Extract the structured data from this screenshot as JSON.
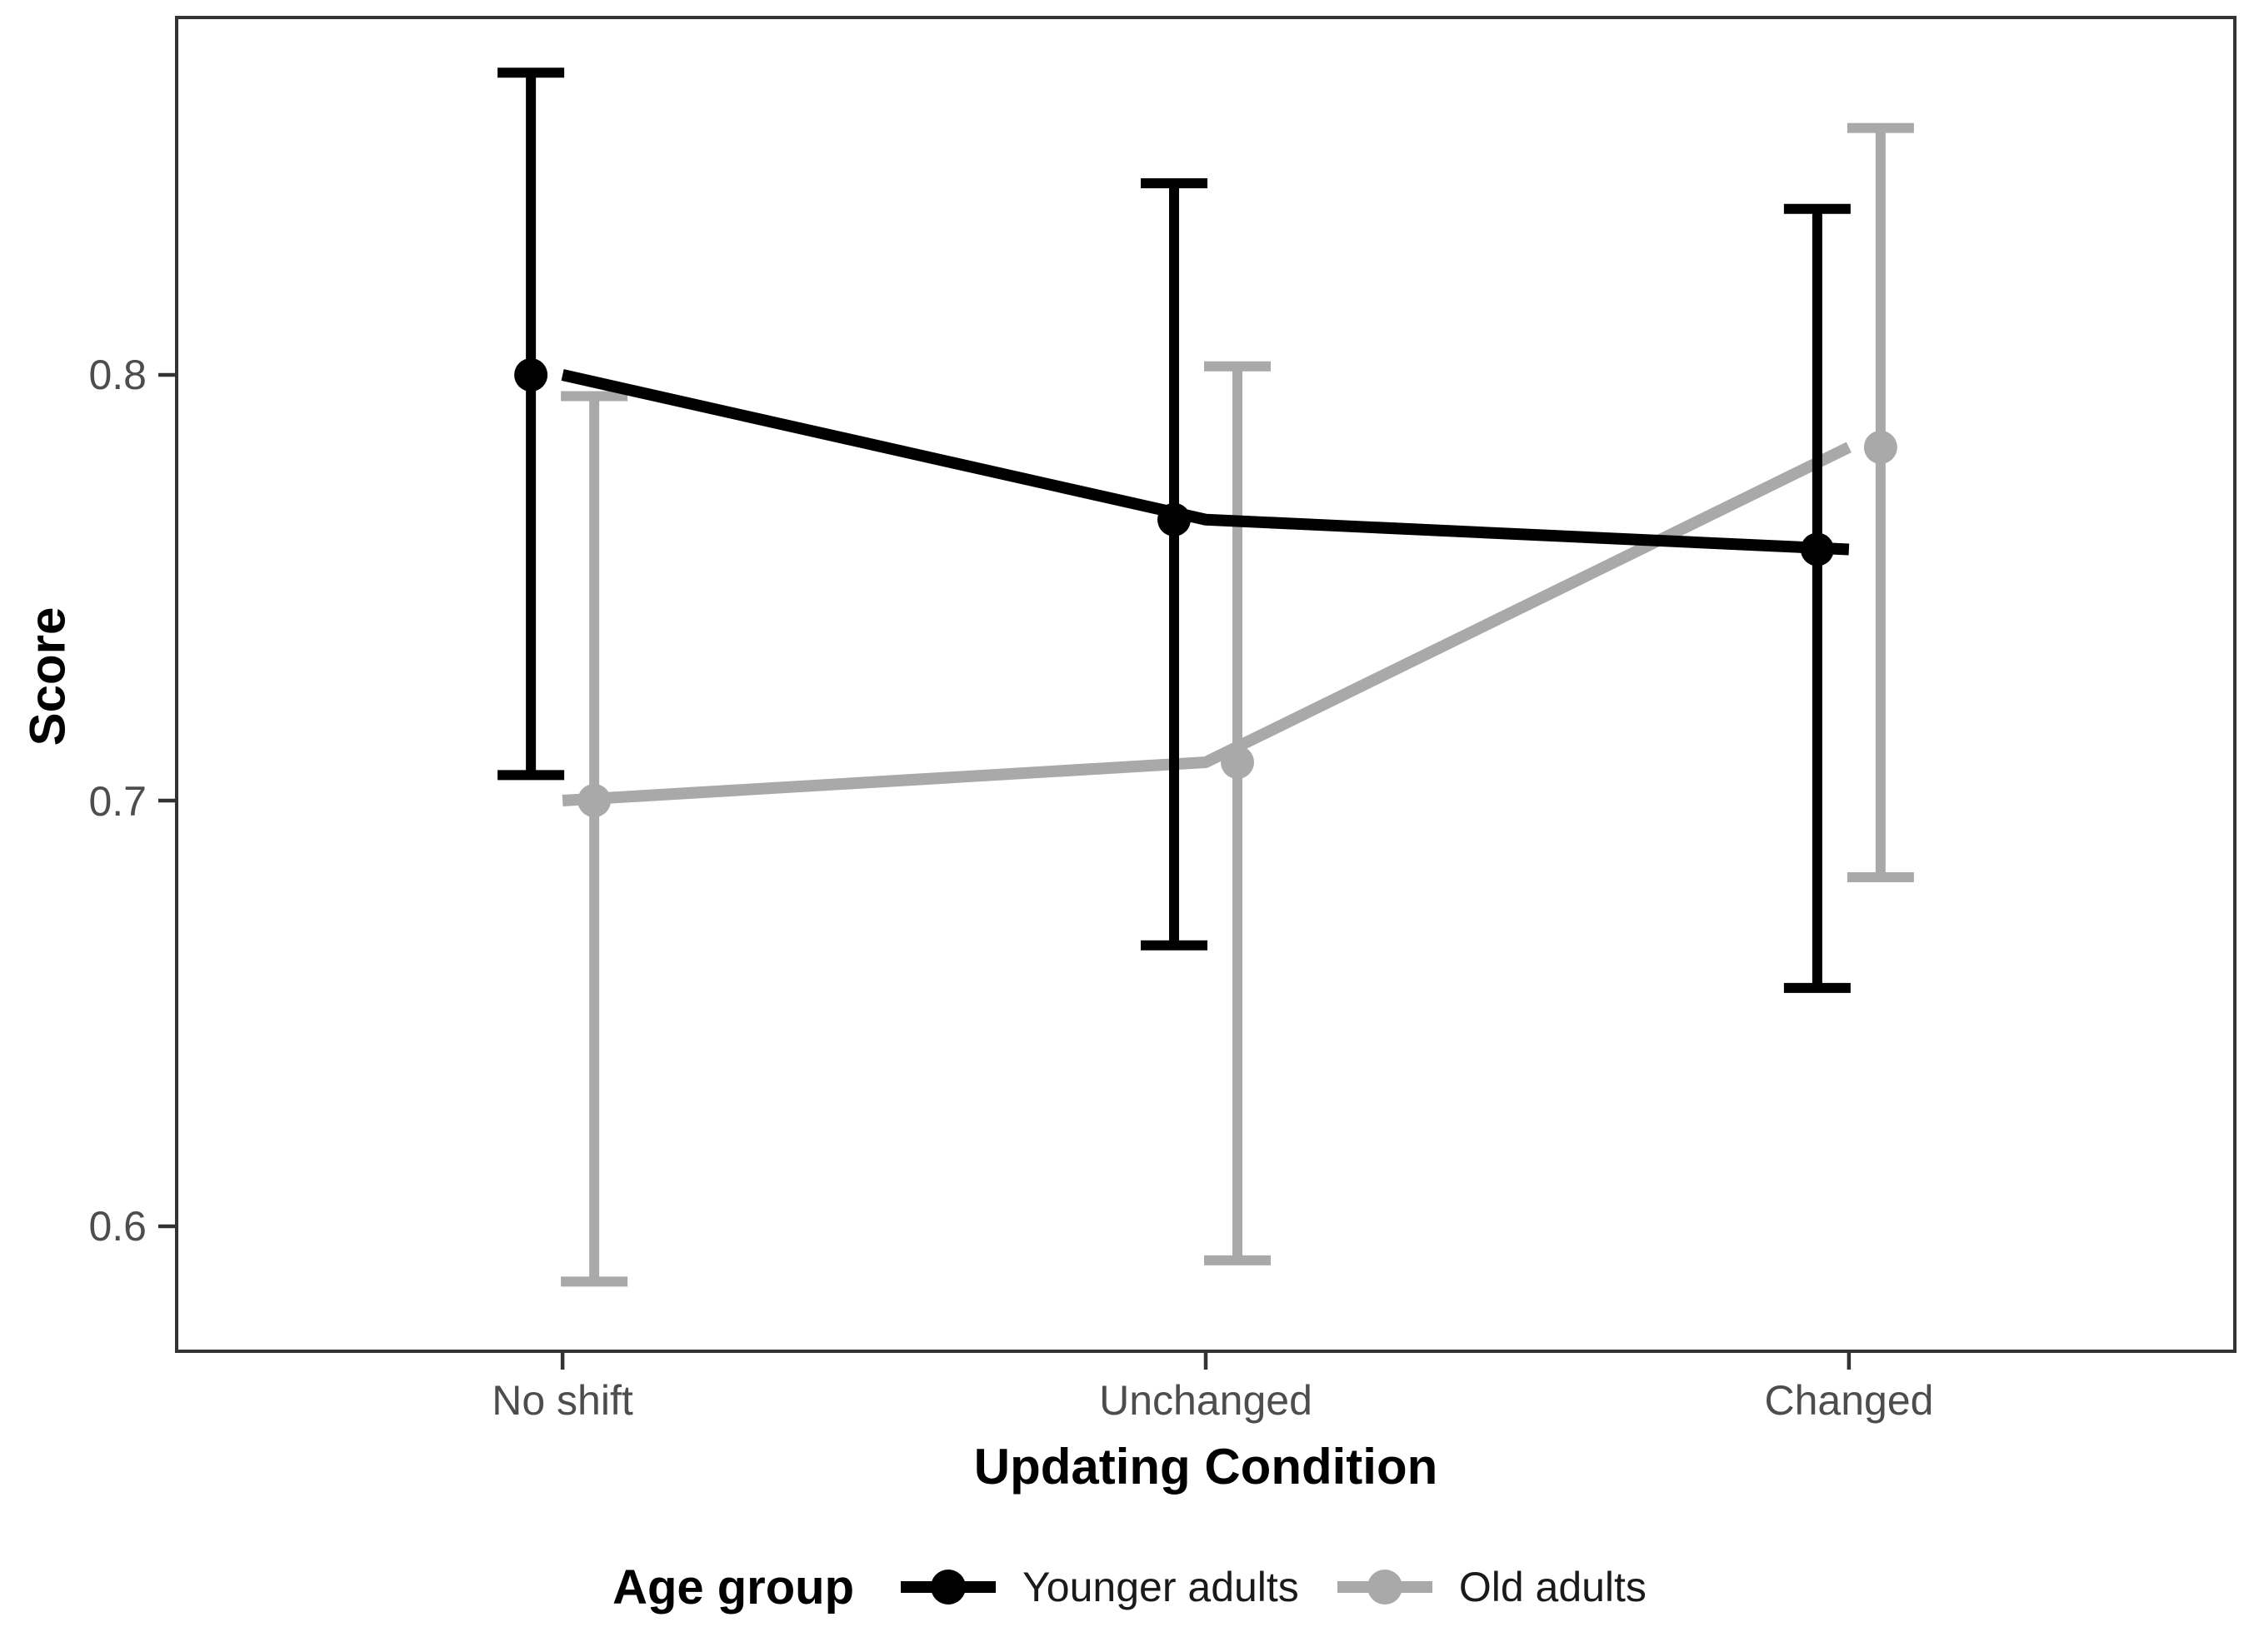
{
  "chart_data": {
    "type": "line",
    "categories": [
      "No shift",
      "Unchanged",
      "Changed"
    ],
    "series": [
      {
        "name": "Younger adults",
        "color": "#000000",
        "values": [
          0.8,
          0.766,
          0.759
        ],
        "ci_low": [
          0.706,
          0.666,
          0.656
        ],
        "ci_high": [
          0.871,
          0.845,
          0.839
        ]
      },
      {
        "name": "Old adults",
        "color": "#a9a9a9",
        "values": [
          0.7,
          0.709,
          0.783
        ],
        "ci_low": [
          0.587,
          0.592,
          0.682
        ],
        "ci_high": [
          0.795,
          0.802,
          0.858
        ]
      }
    ],
    "xlabel": "Updating Condition",
    "ylabel": "Score",
    "y_ticks": [
      0.6,
      0.7,
      0.8
    ],
    "y_tick_labels_top_to_bottom": [
      "0.8",
      "0.7",
      "0.6"
    ],
    "ylim": [
      0.57,
      0.884
    ],
    "grid": false,
    "error_bars": true,
    "points_dodged": true,
    "legend_title": "Age group",
    "legend_position": "bottom"
  },
  "colors": {
    "panel_border": "#333333",
    "tick_mark": "#333333",
    "tick_label": "#4d4d4d",
    "axis_title": "#000000",
    "background": "#ffffff"
  }
}
